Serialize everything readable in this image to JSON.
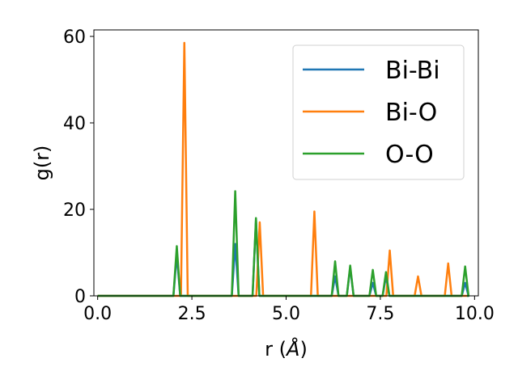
{
  "chart_data": {
    "type": "line",
    "title": "",
    "xlabel_main": "r (",
    "xlabel_unit": "Å",
    "xlabel_close": ")",
    "ylabel": "g(r)",
    "xlim": [
      -0.1,
      10.1
    ],
    "ylim": [
      0,
      61.5
    ],
    "xticks": [
      0.0,
      2.5,
      5.0,
      7.5,
      10.0
    ],
    "xtick_labels": [
      "0.0",
      "2.5",
      "5.0",
      "7.5",
      "10.0"
    ],
    "yticks": [
      0,
      20,
      40,
      60
    ],
    "ytick_labels": [
      "0",
      "20",
      "40",
      "60"
    ],
    "grid": false,
    "legend_position": "top-right",
    "peak_half_width": 0.09,
    "x_range": [
      0.0,
      9.8
    ],
    "series": [
      {
        "name": "Bi-Bi",
        "color": "#1f77b4",
        "peaks": [
          [
            2.1,
            9.5
          ],
          [
            3.65,
            12.0
          ],
          [
            4.2,
            17.5
          ],
          [
            6.3,
            4.5
          ],
          [
            6.7,
            6.5
          ],
          [
            7.3,
            3.0
          ],
          [
            7.65,
            4.5
          ],
          [
            9.75,
            3.0
          ]
        ]
      },
      {
        "name": "Bi-O",
        "color": "#ff7f0e",
        "peaks": [
          [
            2.3,
            58.5
          ],
          [
            4.3,
            17.0
          ],
          [
            5.75,
            19.5
          ],
          [
            7.75,
            10.5
          ],
          [
            8.5,
            4.5
          ],
          [
            9.3,
            7.5
          ]
        ]
      },
      {
        "name": "O-O",
        "color": "#2ca02c",
        "peaks": [
          [
            2.1,
            11.5
          ],
          [
            3.65,
            24.2
          ],
          [
            4.2,
            18.0
          ],
          [
            6.3,
            8.0
          ],
          [
            6.7,
            7.0
          ],
          [
            7.3,
            6.0
          ],
          [
            7.65,
            5.5
          ],
          [
            9.75,
            6.8
          ]
        ]
      }
    ]
  }
}
